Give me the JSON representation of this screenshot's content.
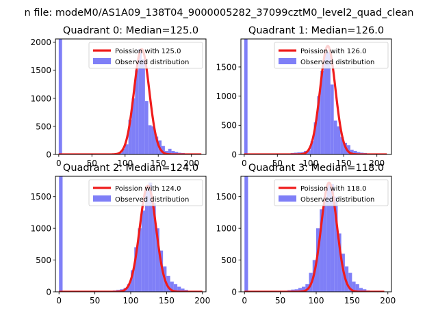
{
  "figure": {
    "suptitle": "n file: modeM0/AS1A09_138T04_9000005282_37099cztM0_level2_quad_clean"
  },
  "style": {
    "hist_color": "#7f7ff7",
    "fit_color": "#ef1c1c",
    "axis_color": "#000000",
    "background": "#ffffff"
  },
  "chart_data": [
    {
      "type": "histogram",
      "title": "Quadrant 0: Median=125.0",
      "legend": [
        "Poission with 125.0",
        "Observed distribution"
      ],
      "legend_position": "top-right",
      "xlim": [
        -5,
        222
      ],
      "ylim": [
        0,
        2060
      ],
      "xticks": [
        0,
        50,
        100,
        150,
        200
      ],
      "xtick_labels": [
        "0",
        "50",
        "100",
        "150",
        "200"
      ],
      "yticks": [
        0,
        500,
        1000,
        1500,
        2000
      ],
      "ytick_labels": [
        "0",
        "500",
        "1000",
        "1500",
        "2000"
      ],
      "bin_width": 5,
      "bins": [
        [
          0,
          2060
        ],
        [
          60,
          8
        ],
        [
          65,
          10
        ],
        [
          70,
          12
        ],
        [
          75,
          15
        ],
        [
          80,
          15
        ],
        [
          85,
          20
        ],
        [
          90,
          25
        ],
        [
          95,
          100
        ],
        [
          100,
          180
        ],
        [
          105,
          620
        ],
        [
          110,
          1000
        ],
        [
          115,
          1500
        ],
        [
          120,
          1880
        ],
        [
          125,
          1700
        ],
        [
          130,
          950
        ],
        [
          135,
          520
        ],
        [
          140,
          500
        ],
        [
          145,
          320
        ],
        [
          150,
          250
        ],
        [
          155,
          150
        ],
        [
          160,
          60
        ],
        [
          165,
          100
        ],
        [
          170,
          60
        ],
        [
          175,
          45
        ],
        [
          180,
          30
        ],
        [
          185,
          25
        ],
        [
          190,
          10
        ]
      ],
      "fit": {
        "mean": 125,
        "peak": 1880,
        "sigma": 11.5,
        "x_range": [
          0,
          215
        ]
      }
    },
    {
      "type": "histogram",
      "title": "Quadrant 1: Median=126.0",
      "legend": [
        "Poission with 126.0",
        "Observed distribution"
      ],
      "legend_position": "top-right",
      "xlim": [
        -5,
        222
      ],
      "ylim": [
        0,
        1980
      ],
      "xticks": [
        0,
        50,
        100,
        150,
        200
      ],
      "xtick_labels": [
        "0",
        "50",
        "100",
        "150",
        "200"
      ],
      "yticks": [
        0,
        500,
        1000,
        1500
      ],
      "ytick_labels": [
        "0",
        "500",
        "1000",
        "1500"
      ],
      "bin_width": 5,
      "bins": [
        [
          0,
          1980
        ],
        [
          65,
          8
        ],
        [
          70,
          25
        ],
        [
          75,
          30
        ],
        [
          80,
          35
        ],
        [
          85,
          40
        ],
        [
          90,
          60
        ],
        [
          95,
          75
        ],
        [
          100,
          230
        ],
        [
          105,
          550
        ],
        [
          110,
          1000
        ],
        [
          115,
          1430
        ],
        [
          120,
          1780
        ],
        [
          125,
          1760
        ],
        [
          130,
          1200
        ],
        [
          135,
          580
        ],
        [
          140,
          480
        ],
        [
          145,
          300
        ],
        [
          150,
          200
        ],
        [
          155,
          160
        ],
        [
          160,
          80
        ],
        [
          165,
          60
        ],
        [
          170,
          40
        ],
        [
          175,
          30
        ],
        [
          180,
          25
        ],
        [
          185,
          10
        ],
        [
          190,
          8
        ]
      ],
      "fit": {
        "mean": 126,
        "peak": 1860,
        "sigma": 11.5,
        "x_range": [
          0,
          215
        ]
      }
    },
    {
      "type": "histogram",
      "title": "Quadrant 2: Median=124.0",
      "legend": [
        "Poission with 124.0",
        "Observed distribution"
      ],
      "legend_position": "top-right",
      "xlim": [
        -5,
        205
      ],
      "ylim": [
        0,
        1820
      ],
      "xticks": [
        0,
        50,
        100,
        150,
        200
      ],
      "xtick_labels": [
        "0",
        "50",
        "100",
        "150",
        "200"
      ],
      "yticks": [
        0,
        500,
        1000,
        1500
      ],
      "ytick_labels": [
        "0",
        "500",
        "1000",
        "1500"
      ],
      "bin_width": 5,
      "bins": [
        [
          0,
          1820
        ],
        [
          60,
          5
        ],
        [
          65,
          8
        ],
        [
          70,
          12
        ],
        [
          75,
          20
        ],
        [
          80,
          30
        ],
        [
          85,
          40
        ],
        [
          90,
          60
        ],
        [
          95,
          120
        ],
        [
          100,
          340
        ],
        [
          105,
          700
        ],
        [
          110,
          1000
        ],
        [
          115,
          1280
        ],
        [
          120,
          1600
        ],
        [
          125,
          1720
        ],
        [
          130,
          1400
        ],
        [
          135,
          1000
        ],
        [
          140,
          650
        ],
        [
          145,
          400
        ],
        [
          150,
          250
        ],
        [
          155,
          160
        ],
        [
          160,
          120
        ],
        [
          165,
          80
        ],
        [
          170,
          50
        ],
        [
          175,
          30
        ],
        [
          180,
          15
        ],
        [
          185,
          8
        ]
      ],
      "fit": {
        "mean": 124,
        "peak": 1670,
        "sigma": 11.4,
        "x_range": [
          0,
          200
        ]
      }
    },
    {
      "type": "histogram",
      "title": "Quadrant 3: Median=118.0",
      "legend": [
        "Poission with 118.0",
        "Observed distribution"
      ],
      "legend_position": "top-right",
      "xlim": [
        -5,
        205
      ],
      "ylim": [
        0,
        1820
      ],
      "xticks": [
        0,
        50,
        100,
        150,
        200
      ],
      "xtick_labels": [
        "0",
        "50",
        "100",
        "150",
        "200"
      ],
      "yticks": [
        0,
        500,
        1000,
        1500
      ],
      "ytick_labels": [
        "0",
        "500",
        "1000",
        "1500"
      ],
      "bin_width": 5,
      "bins": [
        [
          0,
          1820
        ],
        [
          55,
          10
        ],
        [
          60,
          25
        ],
        [
          65,
          35
        ],
        [
          70,
          40
        ],
        [
          75,
          60
        ],
        [
          80,
          80
        ],
        [
          85,
          120
        ],
        [
          90,
          300
        ],
        [
          95,
          500
        ],
        [
          100,
          1000
        ],
        [
          105,
          1300
        ],
        [
          110,
          1500
        ],
        [
          115,
          1720
        ],
        [
          120,
          1700
        ],
        [
          125,
          1500
        ],
        [
          130,
          920
        ],
        [
          135,
          600
        ],
        [
          140,
          400
        ],
        [
          145,
          300
        ],
        [
          150,
          160
        ],
        [
          155,
          120
        ],
        [
          160,
          60
        ],
        [
          165,
          40
        ],
        [
          170,
          20
        ],
        [
          175,
          10
        ]
      ],
      "fit": {
        "mean": 118,
        "peak": 1720,
        "sigma": 11.0,
        "x_range": [
          0,
          195
        ]
      }
    }
  ]
}
